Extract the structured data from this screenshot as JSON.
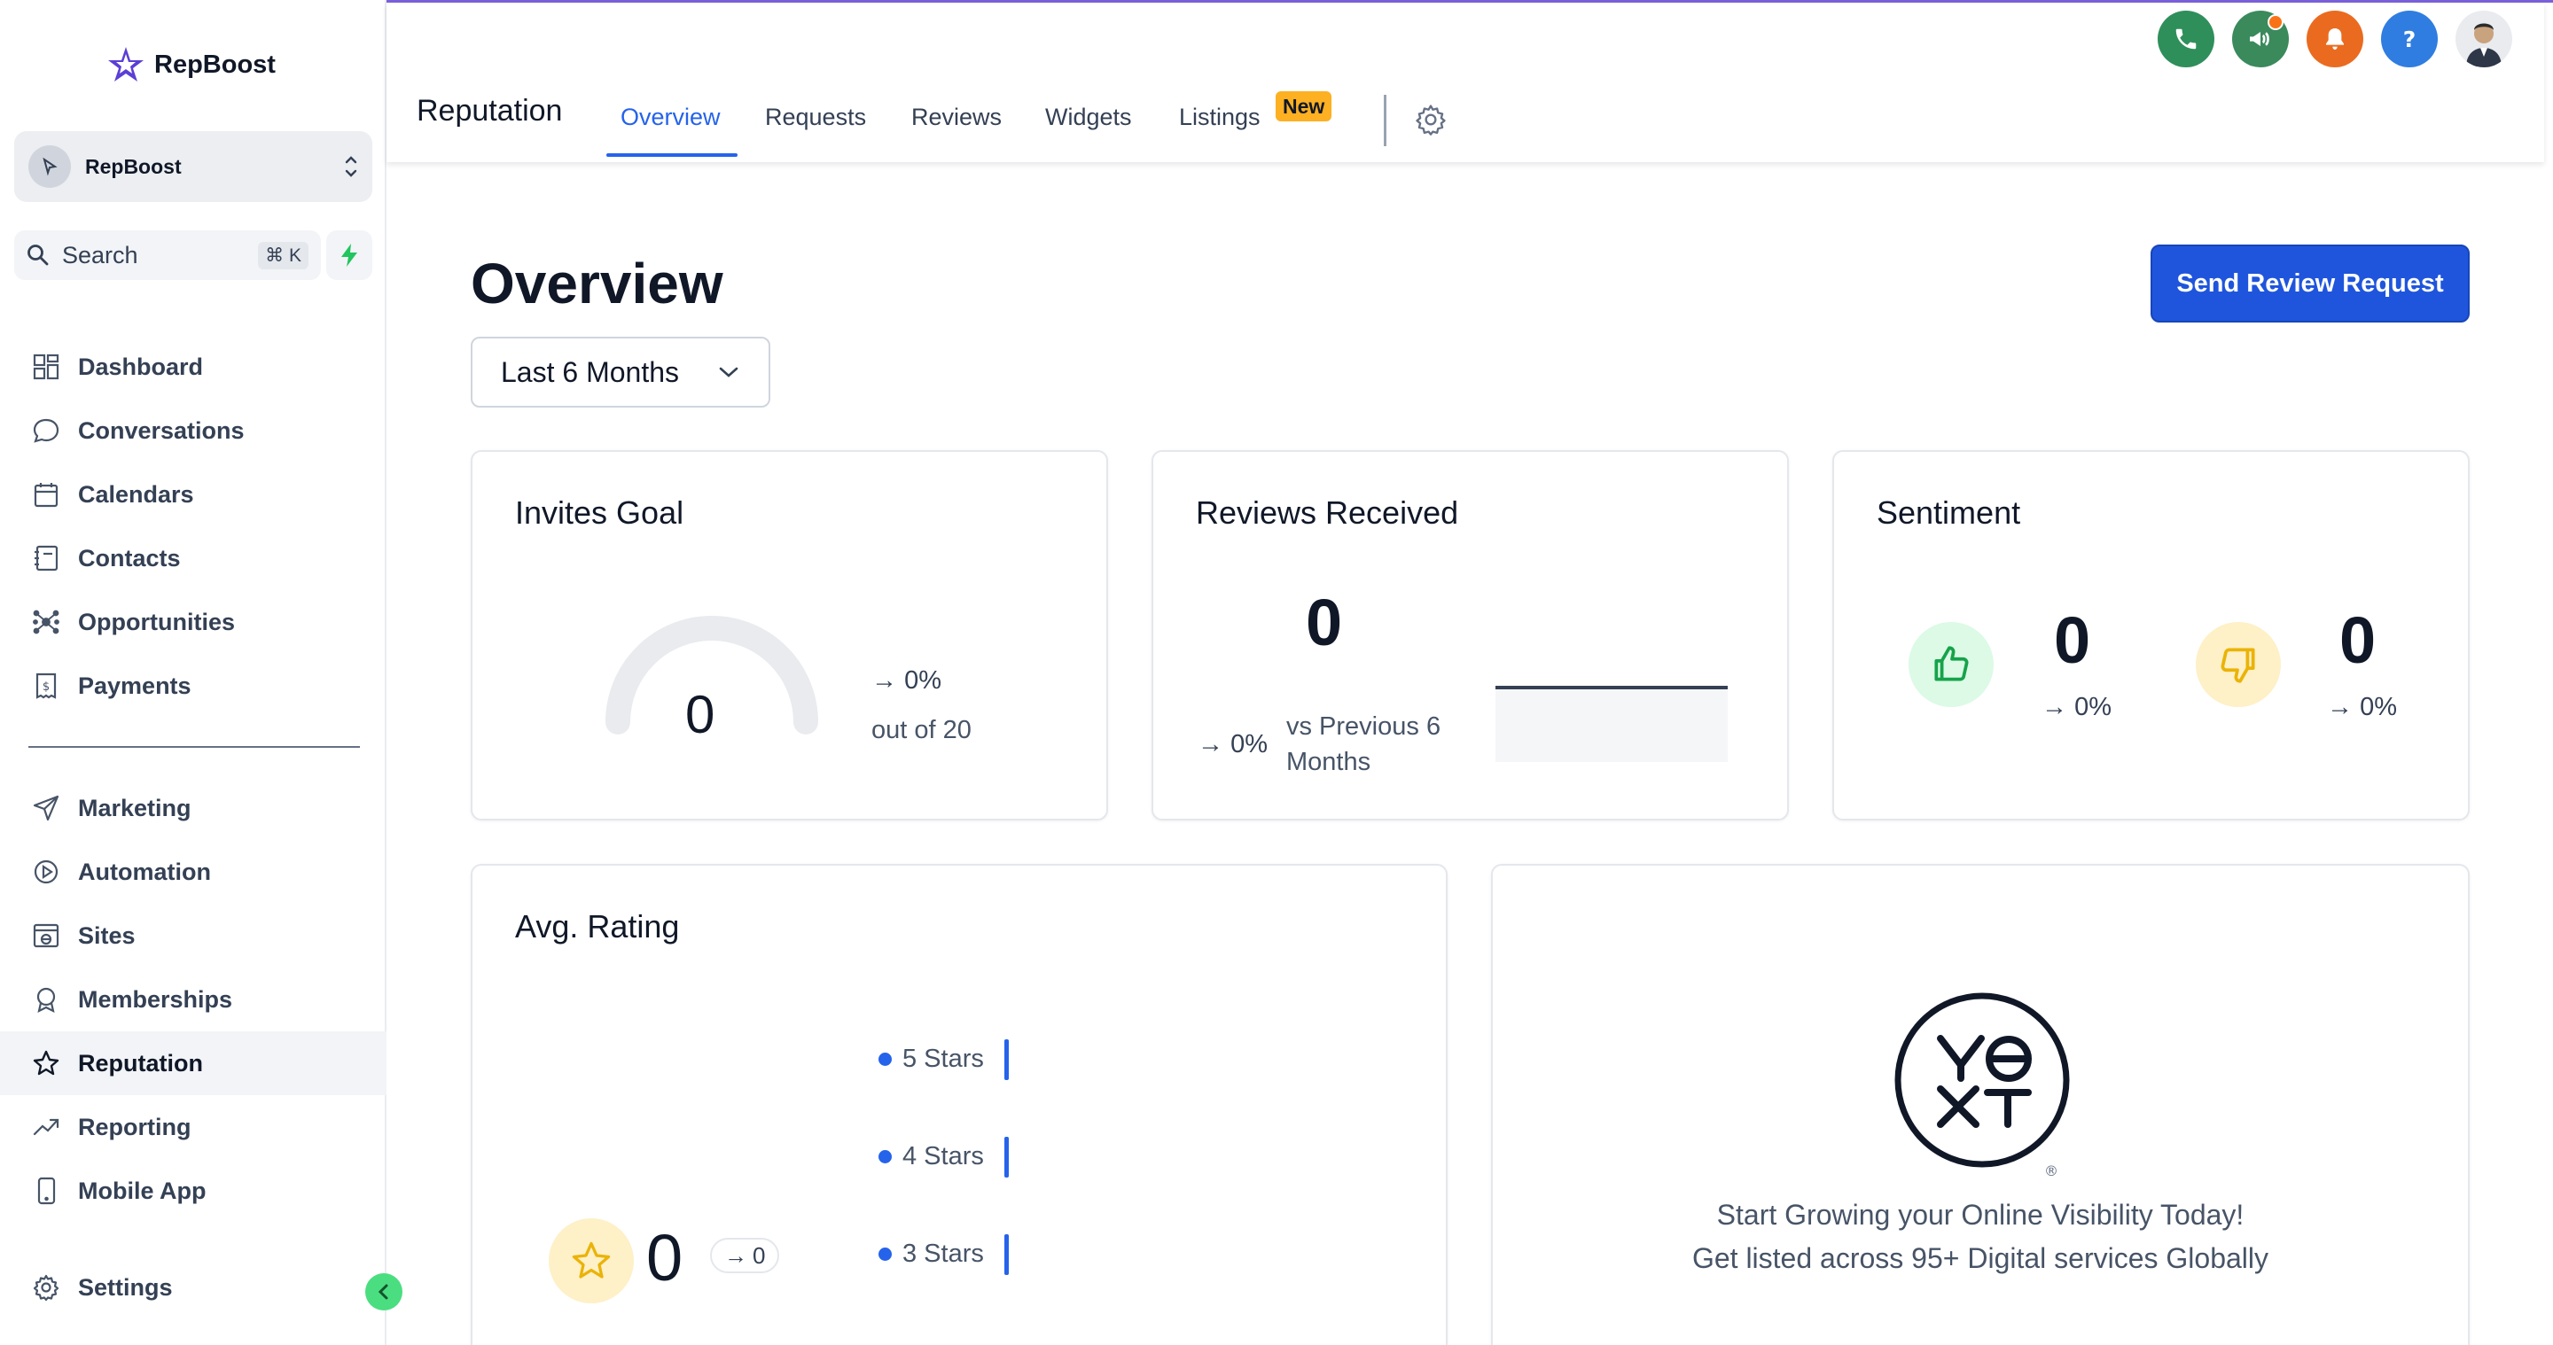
{
  "app": {
    "brand": "RepBoost",
    "account_name": "RepBoost"
  },
  "search": {
    "label": "Search",
    "shortcut": "⌘ K"
  },
  "sidebar": {
    "items": [
      {
        "label": "Dashboard",
        "icon": "dashboard-icon"
      },
      {
        "label": "Conversations",
        "icon": "chat-icon"
      },
      {
        "label": "Calendars",
        "icon": "calendar-icon"
      },
      {
        "label": "Contacts",
        "icon": "contacts-icon"
      },
      {
        "label": "Opportunities",
        "icon": "opportunities-icon"
      },
      {
        "label": "Payments",
        "icon": "payments-icon"
      },
      {
        "label": "Marketing",
        "icon": "send-icon"
      },
      {
        "label": "Automation",
        "icon": "automation-icon"
      },
      {
        "label": "Sites",
        "icon": "sites-icon"
      },
      {
        "label": "Memberships",
        "icon": "membership-icon"
      },
      {
        "label": "Reputation",
        "icon": "star-icon",
        "active": true
      },
      {
        "label": "Reporting",
        "icon": "trend-icon"
      },
      {
        "label": "Mobile App",
        "icon": "mobile-icon"
      },
      {
        "label": "Settings",
        "icon": "gear-icon"
      }
    ]
  },
  "header": {
    "title": "Reputation",
    "tabs": [
      {
        "label": "Overview",
        "active": true
      },
      {
        "label": "Requests"
      },
      {
        "label": "Reviews"
      },
      {
        "label": "Widgets"
      },
      {
        "label": "Listings",
        "badge": "New"
      }
    ],
    "icon_colors": {
      "phone": "#2f8f5b",
      "megaphone": "#3a8a5c",
      "bell": "#ea6b1f",
      "help": "#2f7de1"
    }
  },
  "main": {
    "title": "Overview",
    "period": "Last 6 Months",
    "send_button": "Send Review Request",
    "invites": {
      "title": "Invites Goal",
      "value": "0",
      "change": "0%",
      "out_of": "out of 20"
    },
    "reviews": {
      "title": "Reviews Received",
      "value": "0",
      "change": "0%",
      "comparison": "vs Previous 6",
      "comparison_2": "Months"
    },
    "sentiment": {
      "title": "Sentiment",
      "positive": {
        "value": "0",
        "change": "0%"
      },
      "negative": {
        "value": "0",
        "change": "0%"
      }
    },
    "rating": {
      "title": "Avg. Rating",
      "value": "0",
      "change": "0",
      "rows": [
        "5 Stars",
        "4 Stars",
        "3 Stars"
      ]
    },
    "yext": {
      "line1": "Start Growing your Online Visibility Today!",
      "line2": "Get listed across 95+ Digital services Globally"
    }
  },
  "colors": {
    "accent": "#2563eb",
    "button": "#1f55dc",
    "badge": "#fdb022",
    "collapse": "#4ade80"
  }
}
